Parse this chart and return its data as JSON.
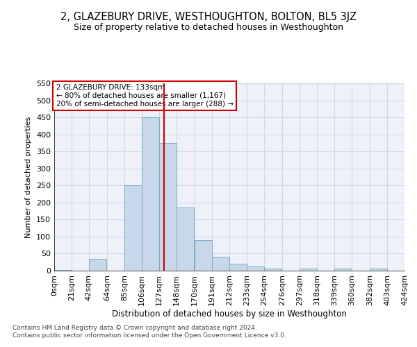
{
  "title": "2, GLAZEBURY DRIVE, WESTHOUGHTON, BOLTON, BL5 3JZ",
  "subtitle": "Size of property relative to detached houses in Westhoughton",
  "xlabel": "Distribution of detached houses by size in Westhoughton",
  "ylabel": "Number of detached properties",
  "footer1": "Contains HM Land Registry data © Crown copyright and database right 2024.",
  "footer2": "Contains public sector information licensed under the Open Government Licence v3.0.",
  "annotation_title": "2 GLAZEBURY DRIVE: 133sqm",
  "annotation_line1": "← 80% of detached houses are smaller (1,167)",
  "annotation_line2": "20% of semi-detached houses are larger (288) →",
  "property_size": 133,
  "bar_left_edges": [
    0,
    21,
    42,
    64,
    85,
    106,
    127,
    148,
    170,
    191,
    212,
    233,
    254,
    276,
    297,
    318,
    339,
    360,
    382,
    403
  ],
  "bar_widths": [
    21,
    21,
    21,
    21,
    21,
    21,
    21,
    21,
    21,
    21,
    21,
    21,
    21,
    21,
    21,
    21,
    21,
    21,
    21,
    21
  ],
  "bar_heights": [
    3,
    0,
    35,
    0,
    250,
    450,
    375,
    185,
    90,
    40,
    20,
    12,
    6,
    0,
    6,
    0,
    6,
    0,
    6,
    0
  ],
  "bar_color": "#c8d8e8",
  "bar_edgecolor": "#7aaac8",
  "vline_x": 133,
  "vline_color": "#cc0000",
  "xlim": [
    0,
    424
  ],
  "ylim": [
    0,
    550
  ],
  "yticks": [
    0,
    50,
    100,
    150,
    200,
    250,
    300,
    350,
    400,
    450,
    500,
    550
  ],
  "xtick_labels": [
    "0sqm",
    "21sqm",
    "42sqm",
    "64sqm",
    "85sqm",
    "106sqm",
    "127sqm",
    "148sqm",
    "170sqm",
    "191sqm",
    "212sqm",
    "233sqm",
    "254sqm",
    "276sqm",
    "297sqm",
    "318sqm",
    "339sqm",
    "360sqm",
    "382sqm",
    "403sqm",
    "424sqm"
  ],
  "xtick_positions": [
    0,
    21,
    42,
    64,
    85,
    106,
    127,
    148,
    170,
    191,
    212,
    233,
    254,
    276,
    297,
    318,
    339,
    360,
    382,
    403,
    424
  ],
  "grid_color": "#d0d8e8",
  "bg_color": "#eef2f8",
  "annotation_box_color": "#cc0000",
  "title_fontsize": 10.5,
  "subtitle_fontsize": 9
}
